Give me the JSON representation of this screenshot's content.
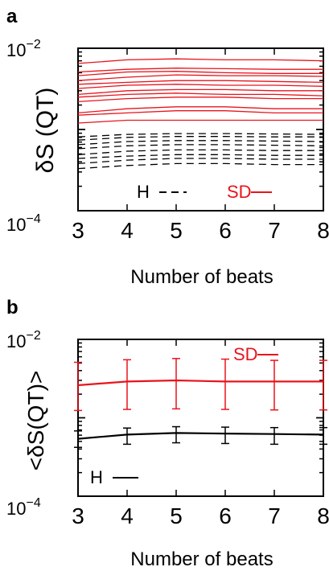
{
  "chart_data": [
    {
      "panel_label": "a",
      "type": "line",
      "ylabel": "δS (QT)",
      "xlabel": "Number of beats",
      "yscale": "log",
      "ylim": [
        0.0001,
        0.01
      ],
      "xlim": [
        3,
        8
      ],
      "x": [
        3,
        4,
        5,
        6,
        7,
        8
      ],
      "xticks": [
        "3",
        "4",
        "5",
        "6",
        "7",
        "8"
      ],
      "ytick_labels": {
        "top": {
          "base": "10",
          "exp": "−2"
        },
        "bottom": {
          "base": "10",
          "exp": "−4"
        }
      },
      "legend": [
        {
          "label": "H",
          "style": "dashed",
          "color": "#000000"
        },
        {
          "label": "SD",
          "style": "solid",
          "color": "#e8141c"
        }
      ],
      "sd_color": "#e8141c",
      "h_color": "#000000",
      "series_sd": [
        [
          0.0065,
          0.0072,
          0.0074,
          0.0072,
          0.0072,
          0.007
        ],
        [
          0.0051,
          0.0055,
          0.0057,
          0.0056,
          0.0055,
          0.0055
        ],
        [
          0.0046,
          0.0051,
          0.0052,
          0.005,
          0.0049,
          0.0049
        ],
        [
          0.004,
          0.0044,
          0.0047,
          0.0046,
          0.0046,
          0.0045
        ],
        [
          0.0036,
          0.0038,
          0.004,
          0.004,
          0.0039,
          0.0038
        ],
        [
          0.0032,
          0.0035,
          0.0036,
          0.0035,
          0.0035,
          0.0034
        ],
        [
          0.0027,
          0.003,
          0.0031,
          0.0031,
          0.003,
          0.003
        ],
        [
          0.0025,
          0.0027,
          0.0028,
          0.0027,
          0.0027,
          0.0026
        ],
        [
          0.0022,
          0.0024,
          0.0025,
          0.0025,
          0.0024,
          0.0024
        ],
        [
          0.0016,
          0.0018,
          0.0019,
          0.0019,
          0.0018,
          0.0018
        ],
        [
          0.0015,
          0.0016,
          0.0017,
          0.0017,
          0.0016,
          0.0016
        ],
        [
          0.0012,
          0.0013,
          0.0013,
          0.0013,
          0.0013,
          0.0013
        ]
      ],
      "series_h": [
        [
          0.00081,
          0.00087,
          0.00089,
          0.00089,
          0.00088,
          0.00087
        ],
        [
          0.00074,
          0.0008,
          0.00082,
          0.00082,
          0.00081,
          0.00081
        ],
        [
          0.00065,
          0.00071,
          0.00073,
          0.00073,
          0.00072,
          0.00071
        ],
        [
          0.00058,
          0.00063,
          0.00065,
          0.00065,
          0.00064,
          0.00063
        ],
        [
          0.00049,
          0.00054,
          0.00056,
          0.00056,
          0.00055,
          0.00055
        ],
        [
          0.00044,
          0.00047,
          0.00049,
          0.00049,
          0.00048,
          0.00048
        ],
        [
          0.00038,
          0.00042,
          0.00044,
          0.00044,
          0.00043,
          0.00043
        ],
        [
          0.00033,
          0.00036,
          0.00038,
          0.00038,
          0.00037,
          0.00037
        ]
      ]
    },
    {
      "panel_label": "b",
      "type": "line",
      "ylabel": "<δS(QT)>",
      "xlabel": "Number of beats",
      "yscale": "log",
      "ylim": [
        0.0001,
        0.01
      ],
      "xlim": [
        3,
        8
      ],
      "x": [
        3,
        4,
        5,
        6,
        7,
        8
      ],
      "xticks": [
        "3",
        "4",
        "5",
        "6",
        "7",
        "8"
      ],
      "ytick_labels": {
        "top": {
          "base": "10",
          "exp": "−2"
        },
        "bottom": {
          "base": "10",
          "exp": "−4"
        }
      },
      "series": [
        {
          "name": "SD",
          "color": "#e8141c",
          "values": [
            0.0026,
            0.0029,
            0.003,
            0.0029,
            0.0029,
            0.0029
          ],
          "err_low": [
            0.00124,
            0.00128,
            0.0013,
            0.00128,
            0.00126,
            0.00126
          ],
          "err_high": [
            0.0051,
            0.0055,
            0.0057,
            0.0056,
            0.0054,
            0.0054
          ]
        },
        {
          "name": "H",
          "color": "#000000",
          "values": [
            0.00054,
            0.00061,
            0.00064,
            0.00063,
            0.00062,
            0.00061
          ],
          "err_low": [
            0.00042,
            0.00046,
            0.00048,
            0.00047,
            0.00046,
            0.00046
          ],
          "err_high": [
            0.00068,
            0.00074,
            0.00077,
            0.00076,
            0.00075,
            0.00075
          ]
        }
      ]
    }
  ]
}
